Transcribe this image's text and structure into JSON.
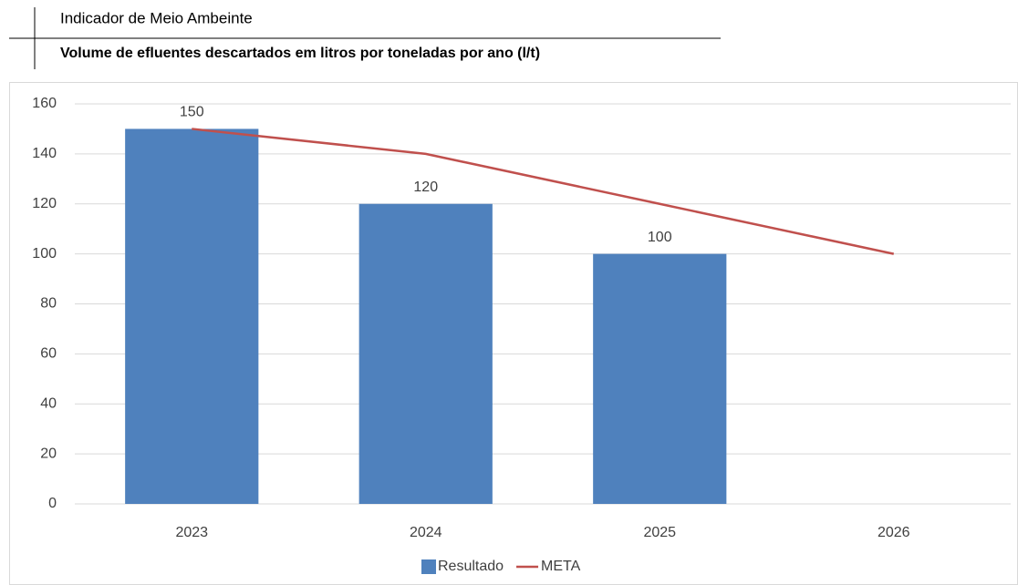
{
  "header": "Indicador de Meio Ambeinte",
  "chart_data": {
    "type": "bar_line",
    "title": "Volume de efluentes descartados em litros por toneladas por ano (l/t)",
    "categories": [
      "2023",
      "2024",
      "2025",
      "2026"
    ],
    "series": [
      {
        "name": "Resultado",
        "type": "bar",
        "color": "#4f81bd",
        "values": [
          150,
          120,
          100,
          null
        ]
      },
      {
        "name": "META",
        "type": "line",
        "color": "#c0504d",
        "values": [
          150,
          140,
          120,
          100
        ]
      }
    ],
    "ylim": [
      0,
      160
    ],
    "yticks": [
      0,
      20,
      40,
      60,
      80,
      100,
      120,
      140,
      160
    ],
    "grid": true,
    "legend": "bottom"
  }
}
